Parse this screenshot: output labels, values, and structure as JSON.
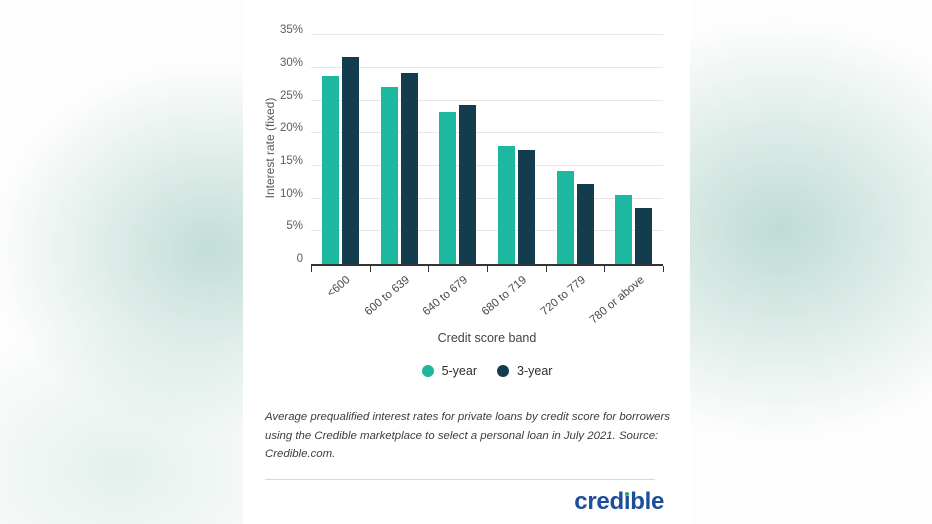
{
  "chart_data": {
    "type": "bar",
    "categories": [
      "<600",
      "600 to 639",
      "640 to 679",
      "680 to 719",
      "720 to 779",
      "780 or above"
    ],
    "series": [
      {
        "name": "5-year",
        "color": "#1cb8a0",
        "values": [
          28.7,
          27.1,
          23.3,
          18.0,
          14.2,
          10.6
        ]
      },
      {
        "name": "3-year",
        "color": "#133d4f",
        "values": [
          31.7,
          29.3,
          24.3,
          17.5,
          12.2,
          8.6
        ]
      }
    ],
    "xlabel": "Credit score band",
    "ylabel": "Interest rate (fixed)",
    "ylim": [
      0,
      35
    ],
    "yticks": [
      {
        "value": 0,
        "label": "0"
      },
      {
        "value": 5,
        "label": "5%"
      },
      {
        "value": 10,
        "label": "10%"
      },
      {
        "value": 15,
        "label": "15%"
      },
      {
        "value": 20,
        "label": "20%"
      },
      {
        "value": 25,
        "label": "25%"
      },
      {
        "value": 30,
        "label": "30%"
      },
      {
        "value": 35,
        "label": "35%"
      }
    ],
    "grid": true,
    "legend_position": "bottom"
  },
  "caption": {
    "line1": "Average prequalified interest rates for private loans by credit score for borrowers",
    "line2": "using the Credible marketplace to select a personal loan in July 2021. Source:",
    "line3": "Credible.com."
  },
  "footer": {
    "brand": "credible",
    "brand_color": "#1b4e9b",
    "brand_dot_color": "#2fa66a"
  }
}
